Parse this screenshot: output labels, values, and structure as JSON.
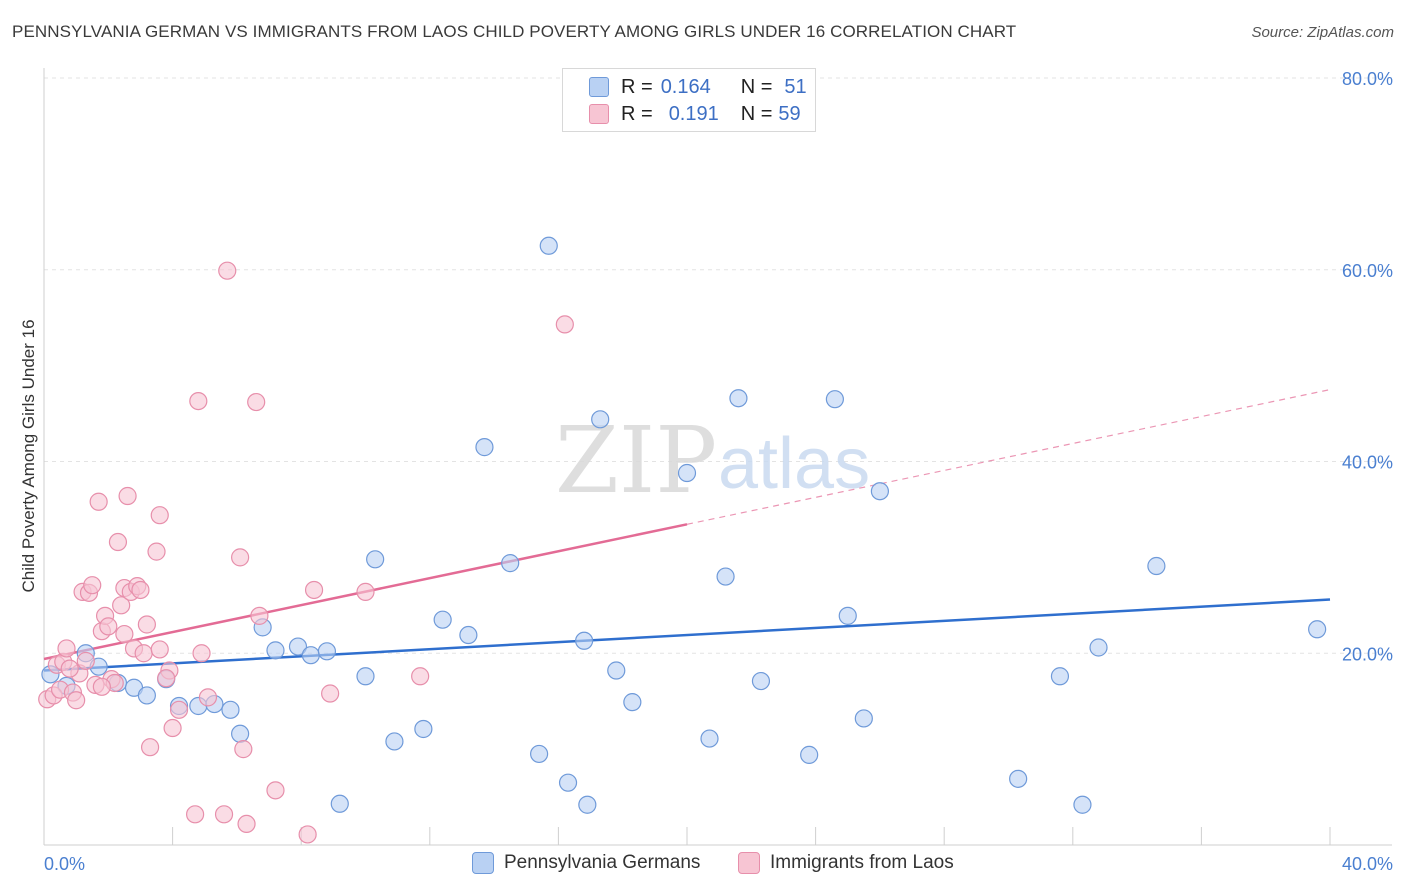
{
  "title": "PENNSYLVANIA GERMAN VS IMMIGRANTS FROM LAOS CHILD POVERTY AMONG GIRLS UNDER 16 CORRELATION CHART",
  "source": "Source: ZipAtlas.com",
  "watermark": {
    "zip": "ZIP",
    "atlas": "atlas"
  },
  "legend": {
    "r_label": "R =",
    "n_label": "N =",
    "rows": [
      {
        "r": "0.164",
        "n": "51"
      },
      {
        "r": "0.191",
        "n": "59"
      }
    ]
  },
  "colors": {
    "blue_fill": "#b9d1f3",
    "blue_stroke": "#6f9ad9",
    "blue_line": "#2f6fce",
    "pink_fill": "#f7c5d3",
    "pink_stroke": "#e78fab",
    "pink_line": "#e36b95",
    "grid": "#e3e3e3",
    "tick_text": "#4a7fd0"
  },
  "chart_data": {
    "type": "scatter",
    "title": "PENNSYLVANIA GERMAN VS IMMIGRANTS FROM LAOS CHILD POVERTY AMONG GIRLS UNDER 16 CORRELATION CHART",
    "xlabel": "",
    "ylabel": "Child Poverty Among Girls Under 16",
    "xlim": [
      0,
      40
    ],
    "ylim": [
      0,
      80
    ],
    "x_tick_labels": [
      "0.0%",
      "40.0%"
    ],
    "y_tick_labels": [
      "20.0%",
      "40.0%",
      "60.0%",
      "80.0%"
    ],
    "y_ticks": [
      20,
      40,
      60,
      80
    ],
    "grid": true,
    "legend_position": "top-center",
    "series": [
      {
        "name": "Pennsylvania Germans",
        "r": 0.164,
        "n": 51,
        "trend": {
          "x0": 0,
          "y0": 18.2,
          "x1": 40,
          "y1": 25.6,
          "dashed_from": null
        },
        "points": [
          [
            0.2,
            17.8
          ],
          [
            0.7,
            16.6
          ],
          [
            1.3,
            20.0
          ],
          [
            1.7,
            18.6
          ],
          [
            2.3,
            16.9
          ],
          [
            2.8,
            16.4
          ],
          [
            3.2,
            15.6
          ],
          [
            3.8,
            17.3
          ],
          [
            4.2,
            14.5
          ],
          [
            4.8,
            14.5
          ],
          [
            5.3,
            14.7
          ],
          [
            5.8,
            14.1
          ],
          [
            6.1,
            11.6
          ],
          [
            6.8,
            22.7
          ],
          [
            7.2,
            20.3
          ],
          [
            7.9,
            20.7
          ],
          [
            8.3,
            19.8
          ],
          [
            8.8,
            20.2
          ],
          [
            9.2,
            4.3
          ],
          [
            10.0,
            17.6
          ],
          [
            10.3,
            29.8
          ],
          [
            10.9,
            10.8
          ],
          [
            11.8,
            12.1
          ],
          [
            12.4,
            23.5
          ],
          [
            13.2,
            21.9
          ],
          [
            13.7,
            41.5
          ],
          [
            14.5,
            29.4
          ],
          [
            15.4,
            9.5
          ],
          [
            15.7,
            62.5
          ],
          [
            16.3,
            6.5
          ],
          [
            16.8,
            21.3
          ],
          [
            16.9,
            4.2
          ],
          [
            17.3,
            44.4
          ],
          [
            17.8,
            18.2
          ],
          [
            18.3,
            14.9
          ],
          [
            20.0,
            38.8
          ],
          [
            20.7,
            11.1
          ],
          [
            21.2,
            28.0
          ],
          [
            21.6,
            46.6
          ],
          [
            22.3,
            17.1
          ],
          [
            23.8,
            9.4
          ],
          [
            24.6,
            46.5
          ],
          [
            25.0,
            23.9
          ],
          [
            25.5,
            13.2
          ],
          [
            26.0,
            36.9
          ],
          [
            30.3,
            6.9
          ],
          [
            31.6,
            17.6
          ],
          [
            32.3,
            4.2
          ],
          [
            32.8,
            20.6
          ],
          [
            34.6,
            29.1
          ],
          [
            39.6,
            22.5
          ]
        ]
      },
      {
        "name": "Immigrants from Laos",
        "r": 0.191,
        "n": 59,
        "trend": {
          "x0": 0,
          "y0": 19.4,
          "x1": 40,
          "y1": 47.5,
          "dashed_from": 20
        },
        "points": [
          [
            0.1,
            15.2
          ],
          [
            0.3,
            15.6
          ],
          [
            0.4,
            18.8
          ],
          [
            0.5,
            16.2
          ],
          [
            0.6,
            19.1
          ],
          [
            0.7,
            20.5
          ],
          [
            0.9,
            15.9
          ],
          [
            1.0,
            15.1
          ],
          [
            1.1,
            17.9
          ],
          [
            1.2,
            26.4
          ],
          [
            1.3,
            19.2
          ],
          [
            1.4,
            26.3
          ],
          [
            1.5,
            27.1
          ],
          [
            1.6,
            16.7
          ],
          [
            1.7,
            35.8
          ],
          [
            1.8,
            22.3
          ],
          [
            1.9,
            23.9
          ],
          [
            2.0,
            22.8
          ],
          [
            2.1,
            17.3
          ],
          [
            2.2,
            16.9
          ],
          [
            2.3,
            31.6
          ],
          [
            2.4,
            25.0
          ],
          [
            2.5,
            26.8
          ],
          [
            2.6,
            36.4
          ],
          [
            2.7,
            26.4
          ],
          [
            2.8,
            20.5
          ],
          [
            2.9,
            27.0
          ],
          [
            3.0,
            26.6
          ],
          [
            3.2,
            23.0
          ],
          [
            3.1,
            20.0
          ],
          [
            3.3,
            10.2
          ],
          [
            3.5,
            30.6
          ],
          [
            3.6,
            20.4
          ],
          [
            3.6,
            34.4
          ],
          [
            3.9,
            18.2
          ],
          [
            4.0,
            12.2
          ],
          [
            4.2,
            14.1
          ],
          [
            4.7,
            3.2
          ],
          [
            4.8,
            46.3
          ],
          [
            4.9,
            20.0
          ],
          [
            5.1,
            15.4
          ],
          [
            5.6,
            3.2
          ],
          [
            5.7,
            59.9
          ],
          [
            6.1,
            30.0
          ],
          [
            6.2,
            10.0
          ],
          [
            6.3,
            2.2
          ],
          [
            6.6,
            46.2
          ],
          [
            6.7,
            23.9
          ],
          [
            7.2,
            5.7
          ],
          [
            8.2,
            1.1
          ],
          [
            8.4,
            26.6
          ],
          [
            8.9,
            15.8
          ],
          [
            10.0,
            26.4
          ],
          [
            11.7,
            17.6
          ],
          [
            16.2,
            54.3
          ],
          [
            3.8,
            17.4
          ],
          [
            1.8,
            16.5
          ],
          [
            0.8,
            18.4
          ],
          [
            2.5,
            22.0
          ]
        ]
      }
    ]
  },
  "bottom_legend": [
    {
      "label": "Pennsylvania Germans"
    },
    {
      "label": "Immigrants from Laos"
    }
  ]
}
